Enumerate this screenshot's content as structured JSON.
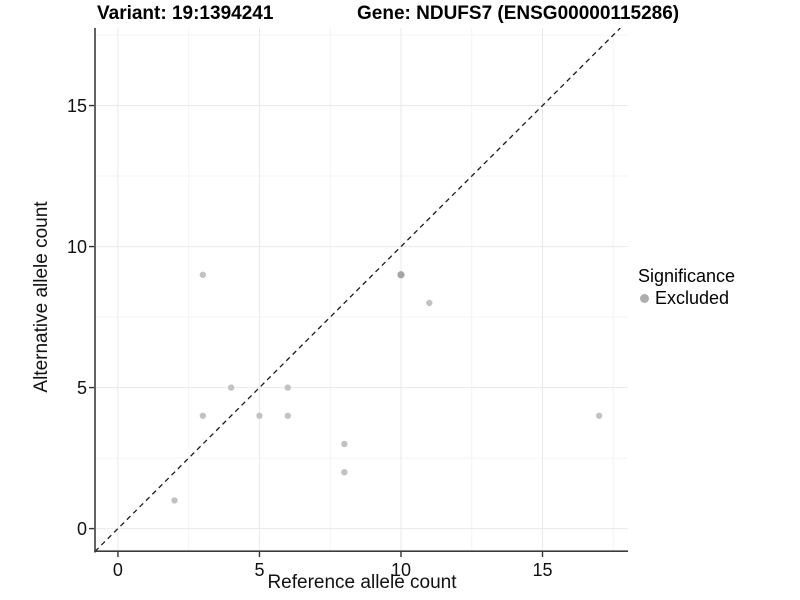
{
  "titles": {
    "variant": "Variant: 19:1394241",
    "gene": "Gene: NDUFS7 (ENSG00000115286)"
  },
  "legend": {
    "title": "Significance",
    "items": [
      {
        "label": "Excluded",
        "color": "#adadad"
      }
    ]
  },
  "colors": {
    "background": "#ffffff",
    "grid_major": "#e9e9e9",
    "grid_minor": "#f4f4f4",
    "axis_line": "#3c3c3c",
    "tick": "#333333",
    "point": "#c2c2c2",
    "point_dark": "#a5a5a5",
    "identity_line": "#1a1a1a"
  },
  "chart_data": {
    "type": "scatter",
    "title": "Variant: 19:1394241 | Gene: NDUFS7 (ENSG00000115286)",
    "xlabel": "Reference allele count",
    "ylabel": "Alternative allele count",
    "xlim": [
      -0.81,
      18.02
    ],
    "ylim": [
      -0.83,
      17.75
    ],
    "x_ticks": [
      0,
      5,
      10,
      15
    ],
    "y_ticks": [
      0,
      5,
      10,
      15
    ],
    "x_minor_ticks": [
      2.5,
      7.5,
      12.5,
      17.5
    ],
    "y_minor_ticks": [
      2.5,
      7.5,
      12.5,
      17.5
    ],
    "grid": "major+minor",
    "legend_position": "right",
    "reference_line": {
      "type": "identity",
      "slope": 1,
      "intercept": 0,
      "style": "dashed"
    },
    "series": [
      {
        "name": "Excluded",
        "points": [
          {
            "x": 2,
            "y": 1
          },
          {
            "x": 3,
            "y": 4
          },
          {
            "x": 3,
            "y": 9
          },
          {
            "x": 4,
            "y": 5
          },
          {
            "x": 5,
            "y": 4
          },
          {
            "x": 6,
            "y": 4
          },
          {
            "x": 6,
            "y": 5
          },
          {
            "x": 8,
            "y": 2
          },
          {
            "x": 8,
            "y": 3
          },
          {
            "x": 10,
            "y": 9,
            "dark": true
          },
          {
            "x": 11,
            "y": 8
          },
          {
            "x": 17,
            "y": 4
          }
        ]
      }
    ]
  }
}
